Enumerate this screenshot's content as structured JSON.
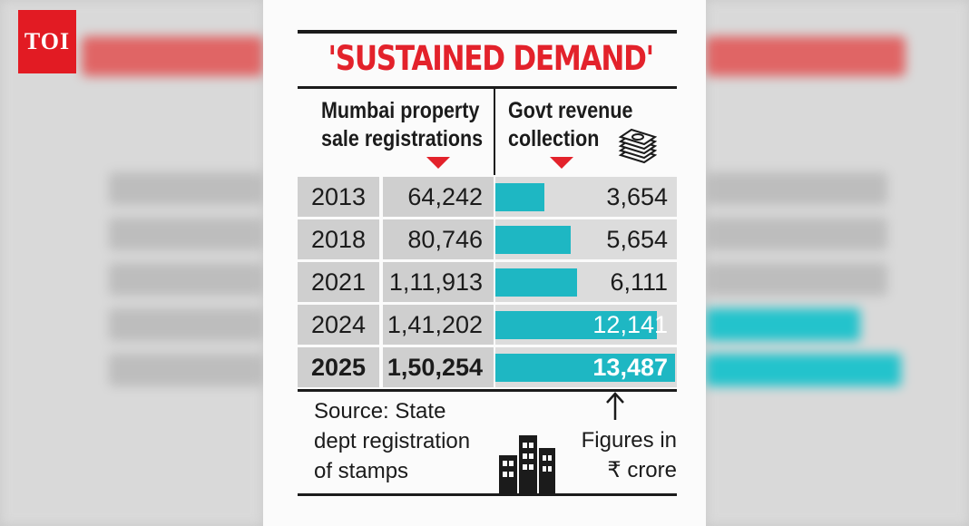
{
  "brand": {
    "logo_text": "TOI",
    "brand_color": "#e21b23"
  },
  "chart_data": {
    "type": "table",
    "title": "'SUSTAINED DEMAND'",
    "columns": [
      {
        "header_line1": "Mumbai property",
        "header_line2": "sale registrations"
      },
      {
        "header_line1": "Govt revenue",
        "header_line2": "collection"
      }
    ],
    "rows": [
      {
        "year": "2013",
        "registrations": "64,242",
        "revenue": "3,654",
        "revenue_value": 3654
      },
      {
        "year": "2018",
        "registrations": "80,746",
        "revenue": "5,654",
        "revenue_value": 5654
      },
      {
        "year": "2021",
        "registrations": "1,11,913",
        "revenue": "6,111",
        "revenue_value": 6111
      },
      {
        "year": "2024",
        "registrations": "1,41,202",
        "revenue": "12,141",
        "revenue_value": 12141
      },
      {
        "year": "2025",
        "registrations": "1,50,254",
        "revenue": "13,487",
        "revenue_value": 13487
      }
    ],
    "revenue_max": 13487,
    "source_note": "Source: State\ndept registration\nof stamps",
    "units_note": "Figures in\n₹ crore",
    "colors": {
      "title": "#e3222b",
      "bar": "#1eb7c3",
      "marker": "#e3222b"
    }
  },
  "icons": [
    "money-stack-icon",
    "up-arrow-icon",
    "building-icon",
    "down-triangle-icon"
  ]
}
